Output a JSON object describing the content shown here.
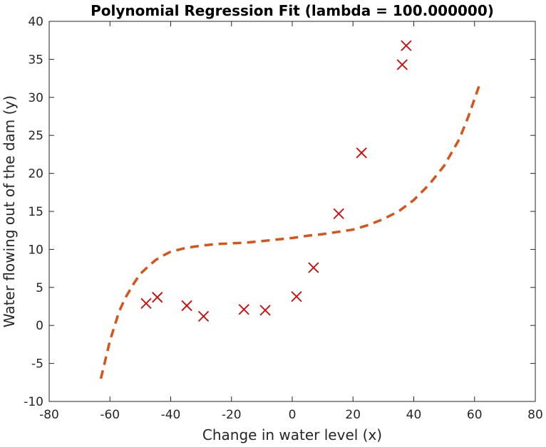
{
  "chart_data": {
    "type": "scatter",
    "title": "Polynomial Regression Fit (lambda = 100.000000)",
    "xlabel": "Change in water level (x)",
    "ylabel": "Water flowing out of the dam (y)",
    "xlim": [
      -80,
      80
    ],
    "ylim": [
      -10,
      40
    ],
    "xticks": [
      -80,
      -60,
      -40,
      -20,
      0,
      20,
      40,
      60,
      80
    ],
    "yticks": [
      -10,
      -5,
      0,
      5,
      10,
      15,
      20,
      25,
      30,
      35,
      40
    ],
    "grid": false,
    "points": {
      "marker": "x",
      "color": "#d90000",
      "x": [
        -48.1,
        -44.4,
        -34.7,
        -29.2,
        -15.9,
        -8.9,
        1.4,
        7.0,
        15.3,
        22.8,
        36.2,
        37.5
      ],
      "y": [
        2.9,
        3.7,
        2.6,
        1.2,
        2.1,
        2.0,
        3.8,
        7.6,
        14.7,
        22.7,
        34.3,
        36.8
      ]
    },
    "fit_curve": {
      "style": "dashed",
      "color": "#d95319",
      "x": [
        -63,
        -60,
        -57,
        -55,
        -52,
        -50,
        -47,
        -45,
        -42,
        -40,
        -37,
        -35,
        -30,
        -25,
        -20,
        -15,
        -10,
        -5,
        0,
        5,
        10,
        15,
        20,
        25,
        30,
        35,
        40,
        45,
        50,
        55,
        58,
        61.5
      ],
      "y": [
        -7.0,
        -2.0,
        1.8,
        3.6,
        5.6,
        6.8,
        7.9,
        8.6,
        9.3,
        9.7,
        10.0,
        10.2,
        10.5,
        10.7,
        10.8,
        10.9,
        11.1,
        11.3,
        11.5,
        11.8,
        12.0,
        12.3,
        12.6,
        13.2,
        14.0,
        15.0,
        16.5,
        18.5,
        21.0,
        24.5,
        27.5,
        31.5
      ]
    }
  }
}
